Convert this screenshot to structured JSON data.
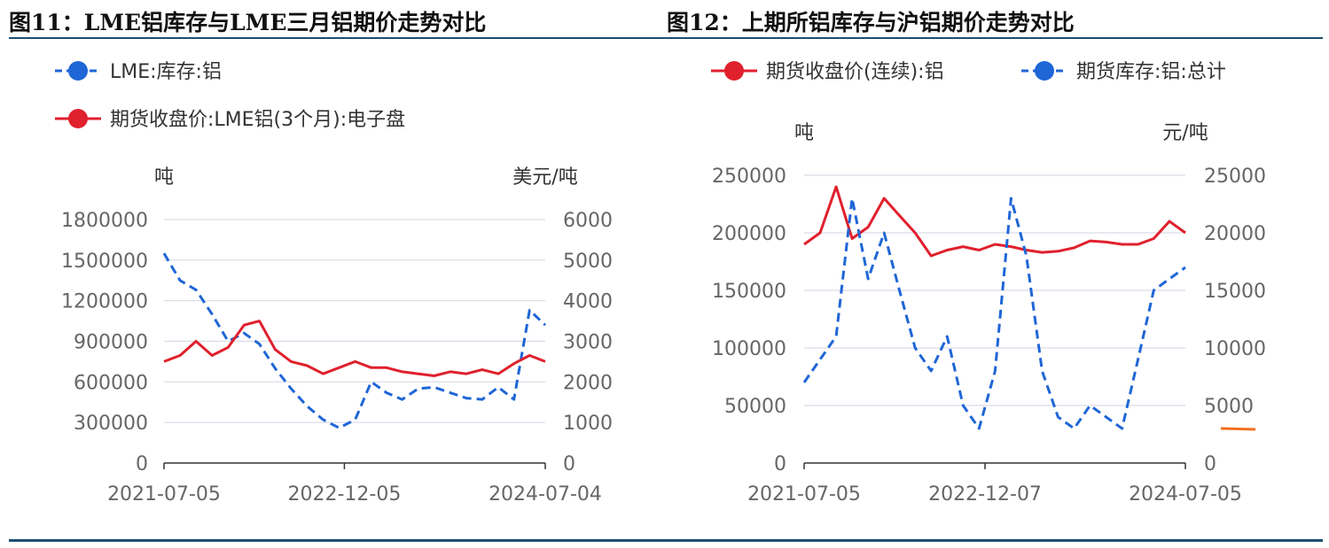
{
  "panels": [
    {
      "title": "图11：LME铝库存与LME三月铝期价走势对比"
    },
    {
      "title": "图12：上期所铝库存与沪铝期价走势对比"
    }
  ],
  "chart_data": [
    {
      "type": "line",
      "left_unit": "吨",
      "right_unit": "美元/吨",
      "x_ticks": [
        "2021-07-05",
        "2022-12-05",
        "2024-07-04"
      ],
      "y_left_ticks": [
        "0",
        "300000",
        "600000",
        "900000",
        "1200000",
        "1500000",
        "1800000"
      ],
      "y_right_ticks": [
        "0",
        "1000",
        "2000",
        "3000",
        "4000",
        "5000",
        "6000"
      ],
      "ylim_left": [
        0,
        1800000
      ],
      "ylim_right": [
        0,
        6000
      ],
      "grid": true,
      "legend_position": "top-left",
      "series": [
        {
          "name": "LME:库存:铝",
          "axis": "left",
          "color": "#1f66d6",
          "style": "dashed",
          "x": [
            "2021-07-05",
            "2021-08-20",
            "2021-10-05",
            "2021-11-20",
            "2022-01-05",
            "2022-02-20",
            "2022-04-05",
            "2022-05-20",
            "2022-07-05",
            "2022-08-20",
            "2022-10-05",
            "2022-11-20",
            "2023-01-05",
            "2023-02-20",
            "2023-04-05",
            "2023-05-20",
            "2023-07-05",
            "2023-08-20",
            "2023-10-05",
            "2023-11-20",
            "2024-01-05",
            "2024-02-20",
            "2024-04-05",
            "2024-05-20",
            "2024-07-04"
          ],
          "values": [
            1550000,
            1350000,
            1280000,
            1100000,
            900000,
            960000,
            880000,
            700000,
            550000,
            420000,
            320000,
            260000,
            320000,
            600000,
            520000,
            470000,
            550000,
            560000,
            520000,
            480000,
            470000,
            560000,
            470000,
            1130000,
            1020000
          ]
        },
        {
          "name": "期货收盘价:LME铝(3个月):电子盘",
          "axis": "right",
          "color": "#e0202d",
          "style": "solid",
          "x": [
            "2021-07-05",
            "2021-08-20",
            "2021-10-05",
            "2021-11-20",
            "2022-01-05",
            "2022-02-20",
            "2022-04-05",
            "2022-05-20",
            "2022-07-05",
            "2022-08-20",
            "2022-10-05",
            "2022-11-20",
            "2023-01-05",
            "2023-02-20",
            "2023-04-05",
            "2023-05-20",
            "2023-07-05",
            "2023-08-20",
            "2023-10-05",
            "2023-11-20",
            "2024-01-05",
            "2024-02-20",
            "2024-04-05",
            "2024-05-20",
            "2024-07-04"
          ],
          "values": [
            2500,
            2650,
            3000,
            2650,
            2850,
            3400,
            3500,
            2800,
            2500,
            2400,
            2200,
            2350,
            2500,
            2350,
            2350,
            2250,
            2200,
            2150,
            2250,
            2200,
            2300,
            2200,
            2450,
            2650,
            2500
          ]
        }
      ]
    },
    {
      "type": "line",
      "left_unit": "吨",
      "right_unit": "元/吨",
      "x_ticks": [
        "2021-07-05",
        "2022-12-07",
        "2024-07-05"
      ],
      "y_left_ticks": [
        "0",
        "50000",
        "100000",
        "150000",
        "200000",
        "250000"
      ],
      "y_right_ticks": [
        "0",
        "5000",
        "10000",
        "15000",
        "20000",
        "25000"
      ],
      "ylim_left": [
        0,
        250000
      ],
      "ylim_right": [
        0,
        25000
      ],
      "grid": true,
      "legend_position": "top-left",
      "series": [
        {
          "name": "期货收盘价(连续):铝",
          "axis": "right",
          "color": "#e0202d",
          "style": "solid",
          "x": [
            "2021-07-05",
            "2021-08-20",
            "2021-10-05",
            "2021-11-20",
            "2022-01-05",
            "2022-02-20",
            "2022-04-05",
            "2022-05-20",
            "2022-07-05",
            "2022-08-20",
            "2022-10-05",
            "2022-11-20",
            "2023-01-05",
            "2023-02-20",
            "2023-04-05",
            "2023-05-20",
            "2023-07-05",
            "2023-08-20",
            "2023-10-05",
            "2023-11-20",
            "2024-01-05",
            "2024-02-20",
            "2024-04-05",
            "2024-05-20",
            "2024-07-05"
          ],
          "values": [
            19000,
            20000,
            24000,
            19500,
            20500,
            23000,
            21500,
            20000,
            18000,
            18500,
            18800,
            18500,
            19000,
            18800,
            18500,
            18300,
            18400,
            18700,
            19300,
            19200,
            19000,
            19000,
            19500,
            21000,
            20000
          ]
        },
        {
          "name": "期货库存:铝:总计",
          "axis": "left",
          "color": "#1f66d6",
          "style": "dashed",
          "x": [
            "2021-07-05",
            "2021-08-20",
            "2021-10-05",
            "2021-11-20",
            "2022-01-05",
            "2022-02-20",
            "2022-04-05",
            "2022-05-20",
            "2022-07-05",
            "2022-08-20",
            "2022-10-05",
            "2022-11-20",
            "2023-01-05",
            "2023-02-20",
            "2023-04-05",
            "2023-05-20",
            "2023-07-05",
            "2023-08-20",
            "2023-10-05",
            "2023-11-20",
            "2024-01-05",
            "2024-02-20",
            "2024-04-05",
            "2024-05-20",
            "2024-07-05"
          ],
          "values": [
            70000,
            90000,
            110000,
            230000,
            160000,
            200000,
            150000,
            100000,
            80000,
            110000,
            50000,
            30000,
            80000,
            230000,
            180000,
            80000,
            40000,
            30000,
            50000,
            40000,
            30000,
            90000,
            150000,
            160000,
            170000
          ]
        }
      ]
    }
  ],
  "colors": {
    "lme_inventory": "#1f66d6",
    "lme_price": "#e0202d",
    "shfe_price": "#e0202d",
    "shfe_inventory": "#1f66d6",
    "rule": "#1b4f72"
  },
  "legend_icons": [
    "line-with-dot-icon",
    "line-with-dot-icon"
  ]
}
